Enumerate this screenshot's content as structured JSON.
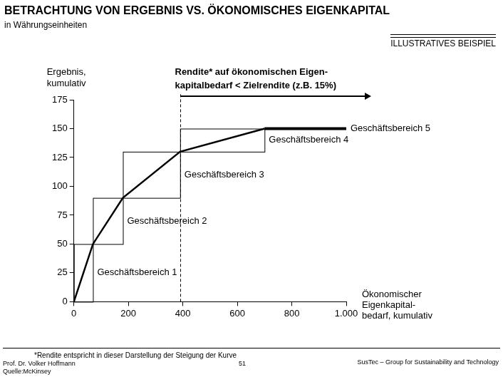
{
  "chart_data": {
    "type": "line",
    "title": "BETRACHTUNG VON ERGEBNIS VS. ÖKONOMISCHES EIGENKAPITAL",
    "subtitle": "in Währungseinheiten",
    "badge": "ILLUSTRATIVES BEISPIEL",
    "y_label": [
      "Ergebnis,",
      "kumulativ"
    ],
    "x_label": [
      "Ökonomischer",
      "Eigenkapital-",
      "bedarf, kumulativ"
    ],
    "x": [
      0,
      70,
      180,
      390,
      700,
      1000
    ],
    "values": [
      0,
      50,
      90,
      130,
      150,
      150
    ],
    "segment_labels": [
      "Geschäftsbereich 1",
      "Geschäftsbereich 2",
      "Geschäftsbereich 3",
      "Geschäftsbereich 4",
      "Geschäftsbereich 5"
    ],
    "threshold_x": 390,
    "annotation": [
      "Rendite* auf ökonomischen Eigen-",
      "kapitalbedarf < Zielrendite (z.B. 15%)"
    ],
    "footnote": "*Rendite entspricht in dieser Darstellung der Steigung der Kurve",
    "author": "Prof. Dr. Volker Hoffmann",
    "page": 51,
    "source": "Quelle:McKinsey",
    "org": "SusTec – Group for Sustainability and Technology",
    "color": "#000000",
    "xlim": [
      0,
      1000
    ],
    "xticks": [
      0,
      200,
      400,
      600,
      800,
      {
        "value": 1000,
        "label": "1.000"
      }
    ],
    "ylim": [
      0,
      175
    ],
    "yticks": [
      0,
      25,
      50,
      75,
      100,
      125,
      150,
      175
    ],
    "grid": false
  }
}
